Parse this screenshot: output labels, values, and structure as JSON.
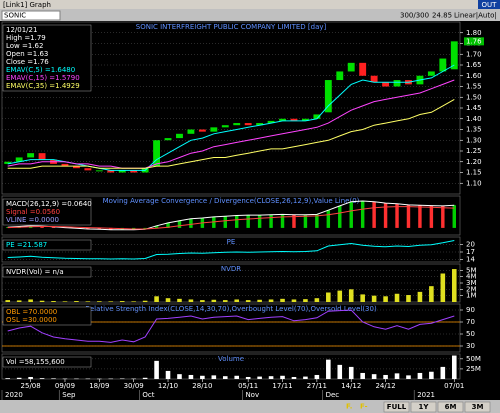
{
  "window": {
    "title": "[Link1] Graph",
    "close_label": "OUT"
  },
  "toolbar": {
    "symbol": "SONIC",
    "count": "300/300",
    "value": "24.85",
    "scale": "Linear|Auto|"
  },
  "chart_data": [
    {
      "type": "candlestick",
      "title": "SONIC INTERFREIGHT PUBLIC COMPANY LIMITED [day]",
      "info": [
        "12/01/21",
        "High =1.79",
        "Low =1.62",
        "Open =1.63",
        "Close =1.76",
        "EMAV(C,5) =1.6480",
        "EMAV(C,15) =1.5790",
        "EMAV(C,35) =1.4929"
      ],
      "up_color": "#00e000",
      "down_color": "#ff2020",
      "open": [
        1.19,
        1.2,
        1.22,
        1.24,
        1.21,
        1.19,
        1.18,
        1.17,
        1.16,
        1.16,
        1.15,
        1.16,
        1.15,
        1.18,
        1.3,
        1.31,
        1.33,
        1.35,
        1.34,
        1.36,
        1.37,
        1.38,
        1.37,
        1.38,
        1.39,
        1.4,
        1.39,
        1.4,
        1.43,
        1.58,
        1.62,
        1.66,
        1.6,
        1.57,
        1.55,
        1.58,
        1.56,
        1.6,
        1.62,
        1.63
      ],
      "close": [
        1.2,
        1.22,
        1.24,
        1.21,
        1.19,
        1.18,
        1.17,
        1.16,
        1.16,
        1.15,
        1.16,
        1.15,
        1.17,
        1.3,
        1.31,
        1.33,
        1.35,
        1.34,
        1.36,
        1.37,
        1.38,
        1.37,
        1.38,
        1.39,
        1.4,
        1.39,
        1.4,
        1.42,
        1.58,
        1.62,
        1.66,
        1.6,
        1.57,
        1.55,
        1.58,
        1.56,
        1.6,
        1.62,
        1.68,
        1.76
      ],
      "series": [
        {
          "color": "#00ffff",
          "values": [
            1.19,
            1.2,
            1.21,
            1.21,
            1.21,
            1.2,
            1.19,
            1.18,
            1.17,
            1.16,
            1.16,
            1.16,
            1.16,
            1.21,
            1.24,
            1.27,
            1.3,
            1.31,
            1.33,
            1.34,
            1.35,
            1.36,
            1.37,
            1.38,
            1.39,
            1.39,
            1.39,
            1.4,
            1.46,
            1.51,
            1.56,
            1.58,
            1.57,
            1.57,
            1.57,
            1.57,
            1.58,
            1.59,
            1.62,
            1.65
          ]
        },
        {
          "color": "#ff44ff",
          "values": [
            1.18,
            1.19,
            1.19,
            1.2,
            1.2,
            1.2,
            1.19,
            1.19,
            1.18,
            1.18,
            1.17,
            1.17,
            1.17,
            1.19,
            1.2,
            1.22,
            1.24,
            1.25,
            1.27,
            1.28,
            1.29,
            1.3,
            1.31,
            1.32,
            1.33,
            1.34,
            1.35,
            1.36,
            1.38,
            1.41,
            1.44,
            1.46,
            1.48,
            1.49,
            1.5,
            1.51,
            1.52,
            1.54,
            1.56,
            1.58
          ]
        },
        {
          "color": "#ffff66",
          "values": [
            1.17,
            1.17,
            1.17,
            1.18,
            1.18,
            1.18,
            1.18,
            1.18,
            1.17,
            1.17,
            1.17,
            1.17,
            1.17,
            1.18,
            1.18,
            1.19,
            1.2,
            1.21,
            1.22,
            1.22,
            1.23,
            1.24,
            1.25,
            1.26,
            1.26,
            1.27,
            1.28,
            1.29,
            1.3,
            1.32,
            1.34,
            1.35,
            1.37,
            1.38,
            1.39,
            1.4,
            1.42,
            1.43,
            1.46,
            1.49
          ]
        }
      ],
      "last_label": "1.76",
      "ylim": [
        1.05,
        1.85
      ],
      "yticks": [
        {
          "value": 1.1,
          "label": "1.10"
        },
        1.15,
        {
          "value": 1.2,
          "label": "1.20"
        },
        1.25,
        {
          "value": 1.3,
          "label": "1.30"
        },
        1.35,
        {
          "value": 1.4,
          "label": "1.40"
        },
        1.45,
        {
          "value": 1.5,
          "label": "1.50"
        },
        1.55,
        {
          "value": 1.6,
          "label": "1.60"
        },
        1.65,
        {
          "value": 1.7,
          "label": "1.70"
        },
        1.75,
        {
          "value": 1.8,
          "label": "1.80"
        }
      ],
      "grid": true
    },
    {
      "type": "line",
      "title": "Moving Average Convergence / Divergence(CLOSE,26,12,9),Value Line(0)",
      "notes": [
        "VLINE =0.0000"
      ],
      "series": [
        {
          "label": "MACD(26,12,9) =0.0640",
          "color": "#ffffff",
          "style": "bar",
          "values": [
            0.002,
            0.004,
            0.006,
            0.005,
            0.003,
            0.001,
            -0.001,
            -0.003,
            -0.004,
            -0.005,
            -0.005,
            -0.005,
            -0.004,
            0.006,
            0.014,
            0.02,
            0.026,
            0.028,
            0.031,
            0.033,
            0.035,
            0.036,
            0.036,
            0.037,
            0.038,
            0.037,
            0.037,
            0.038,
            0.05,
            0.062,
            0.074,
            0.076,
            0.074,
            0.07,
            0.068,
            0.065,
            0.064,
            0.063,
            0.062,
            0.064
          ]
        },
        {
          "label": "Signal =0.0560",
          "color": "#ff4040",
          "style": "line",
          "values": [
            0.001,
            0.002,
            0.003,
            0.004,
            0.004,
            0.003,
            0.002,
            0.001,
            0.0,
            -0.001,
            -0.002,
            -0.003,
            -0.003,
            -0.001,
            0.002,
            0.006,
            0.01,
            0.014,
            0.017,
            0.02,
            0.023,
            0.025,
            0.027,
            0.029,
            0.031,
            0.032,
            0.033,
            0.034,
            0.037,
            0.042,
            0.048,
            0.053,
            0.057,
            0.059,
            0.06,
            0.06,
            0.059,
            0.058,
            0.057,
            0.056
          ]
        }
      ],
      "ylim": [
        -0.02,
        0.09
      ]
    },
    {
      "type": "line",
      "title": "PE",
      "series": [
        {
          "label": "PE =21.587",
          "color": "#00ffff",
          "style": "line",
          "values": [
            14.8,
            15.0,
            15.3,
            14.9,
            14.7,
            14.5,
            14.4,
            14.3,
            14.3,
            14.2,
            14.3,
            14.2,
            14.4,
            16.0,
            16.1,
            16.4,
            16.6,
            16.5,
            16.7,
            16.9,
            17.0,
            16.9,
            17.0,
            17.1,
            17.2,
            17.1,
            17.2,
            17.5,
            19.4,
            19.9,
            20.4,
            19.7,
            19.3,
            19.1,
            19.4,
            19.2,
            19.7,
            19.9,
            20.7,
            21.6
          ]
        }
      ],
      "ylim": [
        13,
        23
      ],
      "yticks": [
        14,
        17,
        20
      ],
      "grid": true
    },
    {
      "type": "bar",
      "title": "NVDR",
      "label": "NVDR(Vol) = n/a",
      "color": "#e0e020",
      "values": [
        300000,
        250000,
        400000,
        200000,
        150000,
        100000,
        150000,
        100000,
        120000,
        100000,
        150000,
        100000,
        200000,
        900000,
        600000,
        500000,
        400000,
        300000,
        350000,
        300000,
        400000,
        300000,
        350000,
        400000,
        500000,
        400000,
        450000,
        600000,
        1500000,
        1800000,
        2000000,
        1200000,
        1000000,
        900000,
        1300000,
        1100000,
        1600000,
        2500000,
        4500000,
        5200000
      ],
      "ylim": [
        0,
        6000000
      ],
      "yticks": [
        {
          "value": 1000000,
          "label": "1M"
        },
        {
          "value": 2000000,
          "label": "2M"
        },
        {
          "value": 3000000,
          "label": "3M"
        },
        {
          "value": 4000000,
          "label": "4M"
        },
        {
          "value": 5000000,
          "label": "5M"
        }
      ],
      "grid": true
    },
    {
      "type": "line",
      "title": "Relative Strength Index(CLOSE,14,30,70),Overbought Level(70),Oversold Level(30)",
      "levels": [
        {
          "value": 70,
          "label": "OBL =70.0000"
        },
        {
          "value": 30,
          "label": "OSL =30.0000"
        }
      ],
      "level_color": "#ff9900",
      "series": [
        {
          "color": "#a040ff",
          "style": "line",
          "values": [
            55,
            60,
            63,
            52,
            45,
            42,
            40,
            38,
            38,
            36,
            40,
            37,
            45,
            75,
            76,
            78,
            80,
            75,
            78,
            79,
            80,
            74,
            76,
            78,
            79,
            72,
            74,
            77,
            88,
            89,
            90,
            70,
            62,
            58,
            64,
            58,
            66,
            68,
            74,
            80
          ]
        }
      ],
      "ylim": [
        20,
        100
      ],
      "yticks": [
        30,
        50,
        70,
        90
      ],
      "grid": true
    },
    {
      "type": "bar",
      "title": "Volume",
      "label": "Vol =58,155,600",
      "color": "#ffffff",
      "values": [
        2000000,
        3000000,
        5000000,
        2000000,
        1500000,
        1000000,
        1000000,
        1000000,
        800000,
        1000000,
        1200000,
        1000000,
        3000000,
        45000000,
        20000000,
        12000000,
        10000000,
        8000000,
        9000000,
        7000000,
        8000000,
        5000000,
        6000000,
        7000000,
        8000000,
        5000000,
        6000000,
        10000000,
        48000000,
        35000000,
        30000000,
        15000000,
        12000000,
        10000000,
        14000000,
        9000000,
        15000000,
        18000000,
        30000000,
        58155600
      ],
      "ylim": [
        0,
        62000000
      ],
      "yticks": [
        {
          "value": 25000000,
          "label": "25M"
        },
        {
          "value": 50000000,
          "label": "50M"
        }
      ],
      "grid": true
    }
  ],
  "x_axis": {
    "categories": [
      null,
      null,
      "25/08",
      null,
      null,
      "09/09",
      null,
      null,
      "18/09",
      null,
      null,
      "30/09",
      null,
      null,
      "12/10",
      null,
      null,
      "28/10",
      null,
      null,
      null,
      "05/11",
      null,
      null,
      "17/11",
      null,
      null,
      "27/11",
      null,
      null,
      "14/12",
      null,
      null,
      "24/12",
      null,
      null,
      null,
      null,
      null,
      "07/01",
      null
    ],
    "months": [
      "2020",
      null,
      null,
      null,
      null,
      "Sep",
      null,
      null,
      null,
      null,
      null,
      null,
      "Oct",
      null,
      null,
      null,
      null,
      null,
      null,
      null,
      null,
      "Nov",
      null,
      null,
      null,
      null,
      null,
      null,
      "Dec",
      null,
      null,
      null,
      null,
      null,
      null,
      null,
      "2021",
      null,
      null,
      null
    ]
  },
  "footer": {
    "buttons": [
      "FULL",
      "1Y",
      "6M",
      "3M"
    ]
  }
}
